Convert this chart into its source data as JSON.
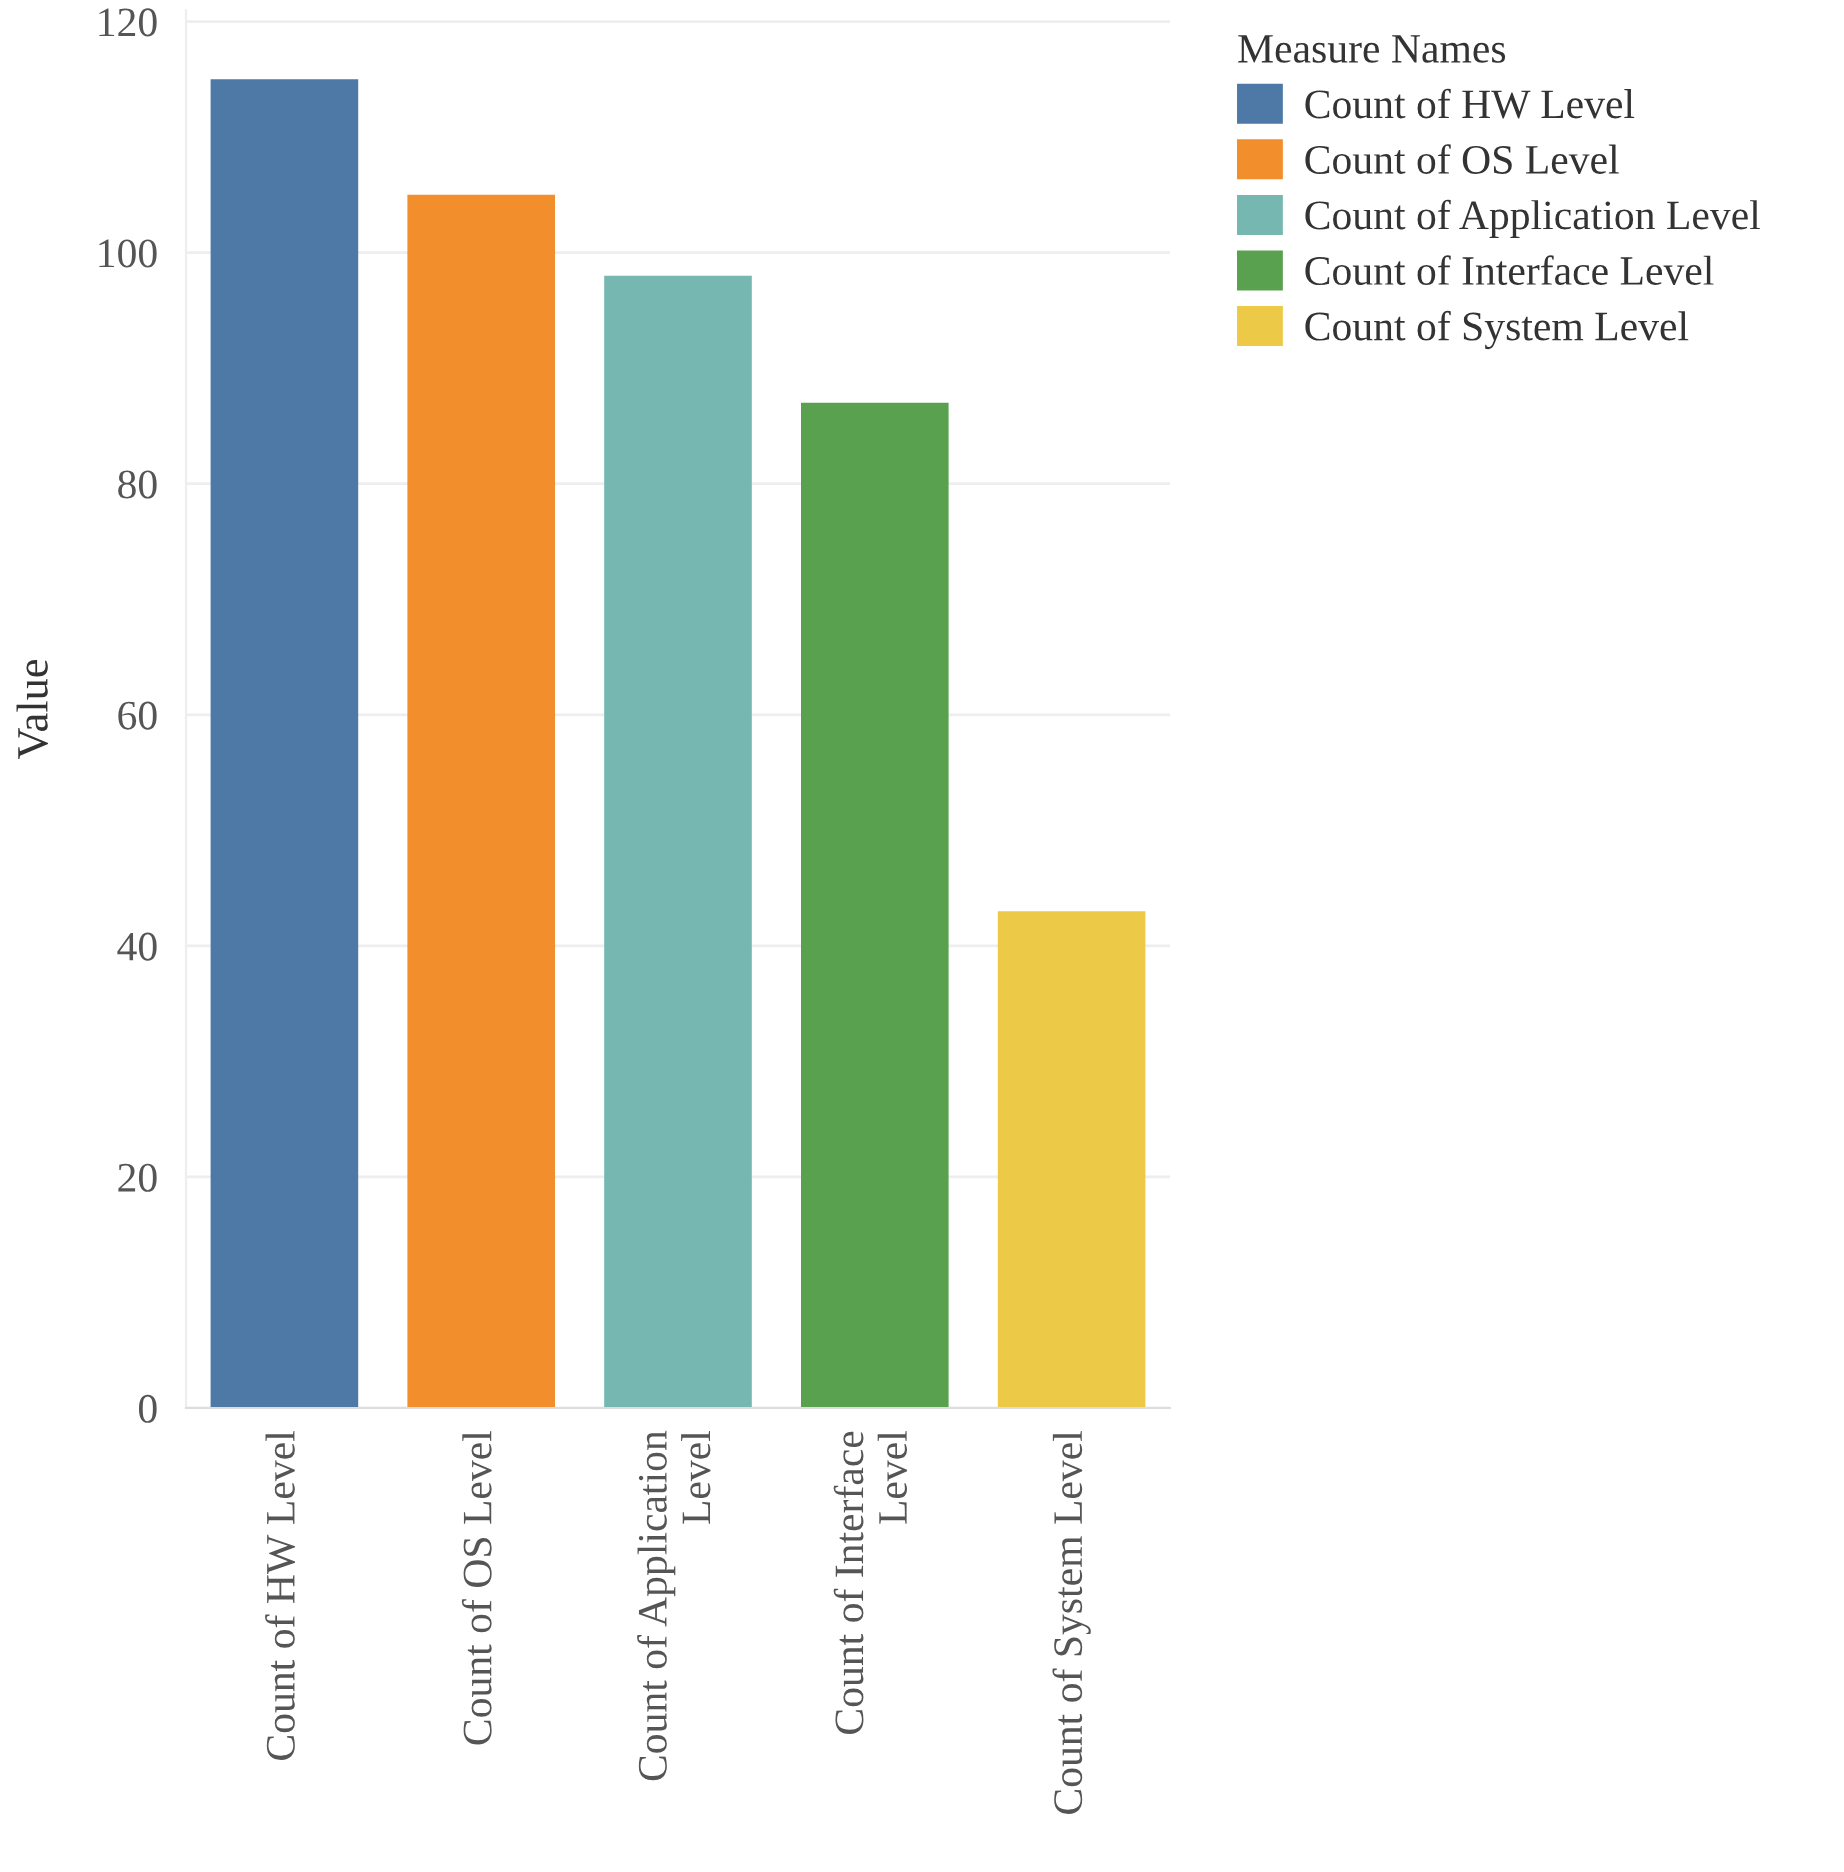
{
  "chart_data": {
    "type": "bar",
    "ylabel": "Value",
    "legend_title": "Measure Names",
    "categories": [
      "Count of HW Level",
      "Count of OS Level",
      "Count of Application Level",
      "Count of Interface Level",
      "Count of System Level"
    ],
    "series": [
      {
        "name": "Count of HW Level",
        "color": "#4e79a7",
        "values": [
          115,
          null,
          null,
          null,
          null
        ]
      },
      {
        "name": "Count of OS Level",
        "color": "#f28e2b",
        "values": [
          null,
          105,
          null,
          null,
          null
        ]
      },
      {
        "name": "Count of Application Level",
        "color": "#76b7b2",
        "values": [
          null,
          null,
          98,
          null,
          null
        ]
      },
      {
        "name": "Count of Interface Level",
        "color": "#59a14f",
        "values": [
          null,
          null,
          null,
          87,
          null
        ]
      },
      {
        "name": "Count of System Level",
        "color": "#edc948",
        "values": [
          null,
          null,
          null,
          null,
          43
        ]
      }
    ],
    "ylim": [
      0,
      121
    ],
    "yticks": [
      0,
      20,
      40,
      60,
      80,
      100,
      120
    ],
    "grid": "y",
    "legend": "top right"
  }
}
